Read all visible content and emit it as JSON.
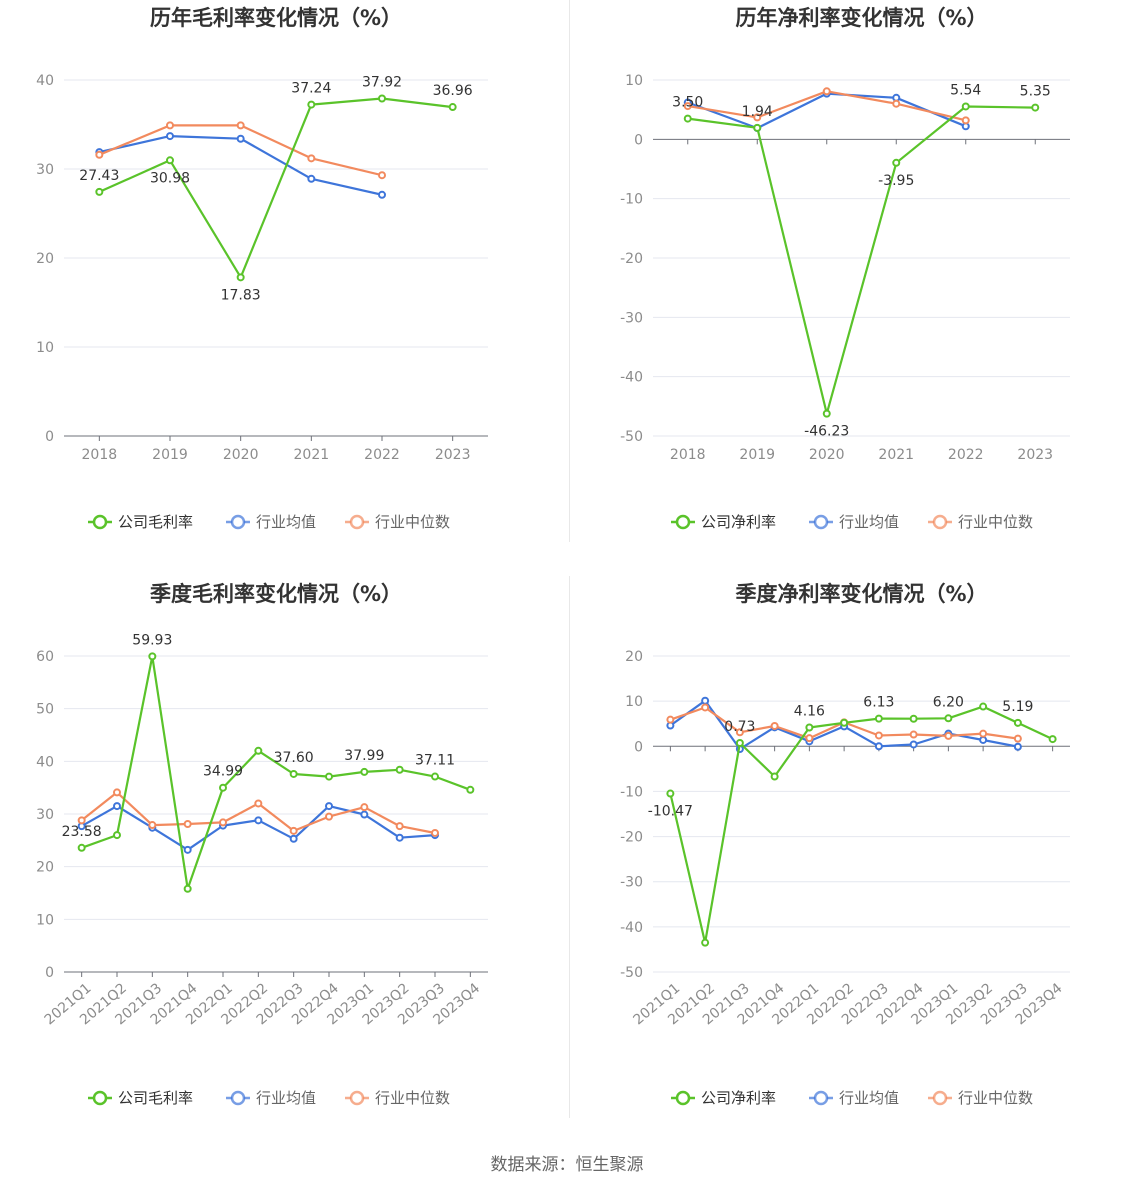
{
  "footer": {
    "source": "数据来源：恒生聚源"
  },
  "colors": {
    "company": "#5ac32a",
    "industry_avg": "#3e75da",
    "industry_median": "#f28a5e"
  },
  "chart_data": [
    {
      "type": "line",
      "title": "历年毛利率变化情况（%）",
      "categories": [
        "2018",
        "2019",
        "2020",
        "2021",
        "2022",
        "2023"
      ],
      "ylim": [
        0,
        40
      ],
      "yticks": [
        0,
        10,
        20,
        30,
        40
      ],
      "grid": true,
      "legend_position": "bottom",
      "series": [
        {
          "name": "公司毛利率",
          "values": [
            27.43,
            30.98,
            17.83,
            37.24,
            37.92,
            36.96
          ],
          "labels": [
            "27.43",
            "30.98",
            "17.83",
            "37.24",
            "37.92",
            "36.96"
          ]
        },
        {
          "name": "行业均值",
          "values": [
            31.9,
            33.7,
            33.4,
            28.9,
            27.1,
            null
          ]
        },
        {
          "name": "行业中位数",
          "values": [
            31.6,
            34.9,
            34.9,
            31.2,
            29.3,
            null
          ]
        }
      ]
    },
    {
      "type": "line",
      "title": "历年净利率变化情况（%）",
      "categories": [
        "2018",
        "2019",
        "2020",
        "2021",
        "2022",
        "2023"
      ],
      "ylim": [
        -50,
        10
      ],
      "yticks": [
        -50,
        -40,
        -30,
        -20,
        -10,
        0,
        10
      ],
      "grid": true,
      "legend_position": "bottom",
      "series": [
        {
          "name": "公司净利率",
          "values": [
            3.5,
            1.94,
            -46.23,
            -3.95,
            5.54,
            5.35
          ],
          "labels": [
            "3.50",
            "1.94",
            "-46.23",
            "-3.95",
            "5.54",
            "5.35"
          ]
        },
        {
          "name": "行业均值",
          "values": [
            6.2,
            1.9,
            7.7,
            7.0,
            2.2,
            null
          ]
        },
        {
          "name": "行业中位数",
          "values": [
            5.6,
            3.7,
            8.1,
            6.0,
            3.2,
            null
          ]
        }
      ]
    },
    {
      "type": "line",
      "title": "季度毛利率变化情况（%）",
      "categories": [
        "2021Q1",
        "2021Q2",
        "2021Q3",
        "2021Q4",
        "2022Q1",
        "2022Q2",
        "2022Q3",
        "2022Q4",
        "2023Q1",
        "2023Q2",
        "2023Q3",
        "2023Q4"
      ],
      "ylim": [
        0,
        60
      ],
      "yticks": [
        0,
        10,
        20,
        30,
        40,
        50,
        60
      ],
      "grid": true,
      "legend_position": "bottom",
      "series": [
        {
          "name": "公司毛利率",
          "values": [
            23.58,
            26.0,
            59.93,
            15.8,
            34.99,
            42.0,
            37.6,
            37.1,
            37.99,
            38.4,
            37.11,
            34.6
          ],
          "labels": [
            "23.58",
            "",
            "59.93",
            "",
            "34.99",
            "",
            "37.60",
            "",
            "37.99",
            "",
            "37.11",
            ""
          ]
        },
        {
          "name": "行业均值",
          "values": [
            27.7,
            31.5,
            27.4,
            23.2,
            27.8,
            28.8,
            25.3,
            31.5,
            29.9,
            25.5,
            26.0,
            null
          ]
        },
        {
          "name": "行业中位数",
          "values": [
            28.8,
            34.1,
            27.9,
            28.1,
            28.4,
            32.0,
            26.8,
            29.5,
            31.3,
            27.7,
            26.4,
            null
          ]
        }
      ]
    },
    {
      "type": "line",
      "title": "季度净利率变化情况（%）",
      "categories": [
        "2021Q1",
        "2021Q2",
        "2021Q3",
        "2021Q4",
        "2022Q1",
        "2022Q2",
        "2022Q3",
        "2022Q4",
        "2023Q1",
        "2023Q2",
        "2023Q3",
        "2023Q4"
      ],
      "ylim": [
        -50,
        20
      ],
      "yticks": [
        -50,
        -40,
        -30,
        -20,
        -10,
        0,
        10,
        20
      ],
      "grid": true,
      "legend_position": "bottom",
      "series": [
        {
          "name": "公司净利率",
          "values": [
            -10.47,
            -43.5,
            0.73,
            -6.7,
            4.16,
            5.2,
            6.13,
            6.1,
            6.2,
            8.8,
            5.19,
            1.6
          ],
          "labels": [
            "-10.47",
            "",
            "0.73",
            "",
            "4.16",
            "",
            "6.13",
            "",
            "6.20",
            "",
            "5.19",
            ""
          ]
        },
        {
          "name": "行业均值",
          "values": [
            4.6,
            10.1,
            -0.6,
            4.2,
            1.1,
            4.4,
            0.0,
            0.4,
            2.8,
            1.4,
            -0.1,
            null
          ]
        },
        {
          "name": "行业中位数",
          "values": [
            5.9,
            8.6,
            3.1,
            4.5,
            1.8,
            5.3,
            2.4,
            2.6,
            2.3,
            2.8,
            1.7,
            null
          ]
        }
      ]
    }
  ]
}
